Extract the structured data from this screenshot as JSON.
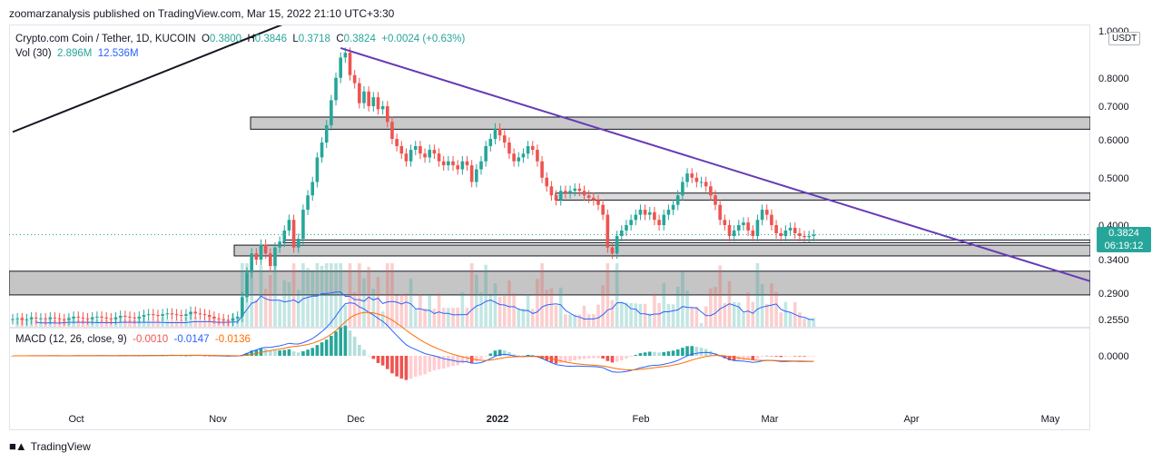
{
  "header": {
    "attribution": "zoomarzanalysis published on TradingView.com, Mar 15, 2022 21:10 UTC+3:30"
  },
  "legend": {
    "symbol": "Crypto.com Coin / Tether, 1D, KUCOIN",
    "open_label": "O",
    "open": "0.3800",
    "high_label": "H",
    "high": "0.3846",
    "low_label": "L",
    "low": "0.3718",
    "close_label": "C",
    "close": "0.3824",
    "change": "+0.0024 (+0.63%)",
    "vol_label": "Vol (30)",
    "vol_value": "2.896M",
    "vol_ma": "12.536M"
  },
  "macd_legend": {
    "label": "MACD (12, 26, close, 9)",
    "hist": "-0.0010",
    "macd": "-0.0147",
    "signal": "-0.0136"
  },
  "axis": {
    "unit": "USDT",
    "current_price": "0.3824",
    "countdown": "06:19:12"
  },
  "footer": {
    "brand": "TradingView"
  },
  "colors": {
    "up": "#26a69a",
    "down": "#ef5350",
    "trend_line": "#673ab7",
    "ma_line": "#2962ff",
    "signal_line": "#ff6d00",
    "zone": "#bdbdbd"
  },
  "chart_data": {
    "type": "candlestick",
    "symbol": "Crypto.com Coin / Tether",
    "interval": "1D",
    "exchange": "KUCOIN",
    "y_scale": "log",
    "ylim": [
      0.25,
      1.0
    ],
    "y_ticks": [
      "1.0000",
      "0.8000",
      "0.7000",
      "0.6000",
      "0.5000",
      "0.4000",
      "0.3400",
      "0.2900",
      "0.2550"
    ],
    "x_ticks": [
      "Oct",
      "Nov",
      "Dec",
      "2022",
      "Feb",
      "Mar",
      "Apr",
      "May"
    ],
    "macd_ticks": [
      "0.0000"
    ],
    "x_start": "2021-09-16",
    "closes": [
      0.257,
      0.258,
      0.256,
      0.257,
      0.259,
      0.258,
      0.258,
      0.257,
      0.259,
      0.258,
      0.257,
      0.256,
      0.258,
      0.26,
      0.259,
      0.258,
      0.257,
      0.259,
      0.26,
      0.259,
      0.258,
      0.257,
      0.259,
      0.261,
      0.26,
      0.259,
      0.258,
      0.26,
      0.262,
      0.263,
      0.262,
      0.261,
      0.263,
      0.264,
      0.263,
      0.262,
      0.261,
      0.263,
      0.266,
      0.264,
      0.263,
      0.262,
      0.26,
      0.258,
      0.257,
      0.256,
      0.255,
      0.258,
      0.26,
      0.285,
      0.32,
      0.35,
      0.34,
      0.365,
      0.35,
      0.33,
      0.36,
      0.37,
      0.39,
      0.41,
      0.36,
      0.375,
      0.43,
      0.46,
      0.49,
      0.55,
      0.59,
      0.64,
      0.72,
      0.8,
      0.88,
      0.9,
      0.81,
      0.78,
      0.71,
      0.75,
      0.7,
      0.73,
      0.69,
      0.7,
      0.65,
      0.6,
      0.58,
      0.56,
      0.54,
      0.57,
      0.58,
      0.56,
      0.55,
      0.57,
      0.56,
      0.54,
      0.53,
      0.54,
      0.53,
      0.52,
      0.54,
      0.53,
      0.49,
      0.52,
      0.54,
      0.58,
      0.6,
      0.63,
      0.61,
      0.59,
      0.56,
      0.54,
      0.55,
      0.56,
      0.58,
      0.57,
      0.54,
      0.5,
      0.48,
      0.46,
      0.45,
      0.47,
      0.465,
      0.47,
      0.475,
      0.47,
      0.46,
      0.455,
      0.45,
      0.44,
      0.42,
      0.36,
      0.35,
      0.38,
      0.39,
      0.4,
      0.41,
      0.42,
      0.43,
      0.42,
      0.425,
      0.41,
      0.4,
      0.42,
      0.43,
      0.44,
      0.46,
      0.49,
      0.51,
      0.5,
      0.49,
      0.49,
      0.48,
      0.46,
      0.44,
      0.41,
      0.4,
      0.38,
      0.39,
      0.4,
      0.405,
      0.39,
      0.38,
      0.41,
      0.43,
      0.42,
      0.4,
      0.385,
      0.38,
      0.39,
      0.395,
      0.385,
      0.38,
      0.378,
      0.38,
      0.3824
    ],
    "overlays": {
      "resistance_zone": [
        0.628,
        0.665
      ],
      "mid_zone": [
        0.45,
        0.465
      ],
      "support_zone_1": [
        0.368,
        0.373
      ],
      "support_zone_2": [
        0.346,
        0.364
      ],
      "demand_zone": [
        0.288,
        0.322
      ],
      "descending_trendline": [
        "2021-11-25",
        0.92,
        "2022-05-15",
        0.285
      ],
      "ascending_trendline": [
        "2021-09-16",
        0.62,
        "2021-11-15",
        1.05
      ]
    }
  }
}
